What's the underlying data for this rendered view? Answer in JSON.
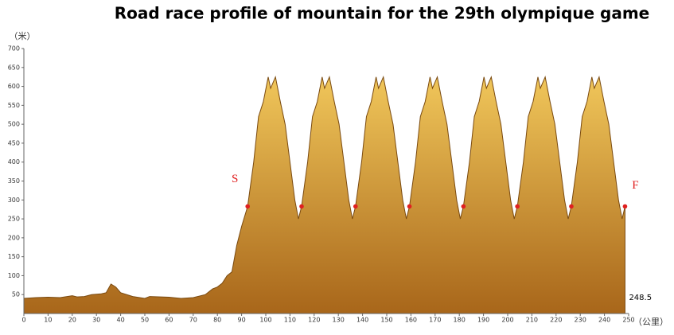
{
  "chart_data": {
    "type": "area",
    "title": "Road race profile of mountain for the 29th olympique game",
    "y_label": "（米）",
    "x_label": "（公里）",
    "end_label": "248.5",
    "start_marker": "S",
    "finish_marker": "F",
    "xlim": [
      0,
      250
    ],
    "ylim": [
      0,
      700
    ],
    "xticks": [
      0,
      10,
      20,
      30,
      40,
      50,
      60,
      70,
      80,
      90,
      100,
      110,
      120,
      130,
      140,
      150,
      160,
      170,
      180,
      190,
      200,
      210,
      220,
      230,
      240,
      250
    ],
    "yticks": [
      50,
      100,
      150,
      200,
      250,
      300,
      350,
      400,
      450,
      500,
      550,
      600,
      650,
      700
    ],
    "color": "#d9a030",
    "marker_color": "#e02020",
    "x": [
      0,
      5,
      10,
      15,
      20,
      22,
      25,
      28,
      32,
      34,
      36,
      38,
      40,
      45,
      50,
      52,
      60,
      65,
      70,
      75,
      78,
      80,
      82,
      84,
      86,
      88,
      90,
      92.5,
      95,
      97,
      99,
      101,
      102,
      103,
      104,
      106,
      108,
      110,
      112,
      113.5,
      114.8,
      117.3,
      119.3,
      121.3,
      123.3,
      124.3,
      125.3,
      126.3,
      128.3,
      130.3,
      132.3,
      134.3,
      135.8,
      137.1,
      139.6,
      141.6,
      143.6,
      145.6,
      146.6,
      147.6,
      148.6,
      150.6,
      152.6,
      154.6,
      156.6,
      158.1,
      159.4,
      161.9,
      163.9,
      165.9,
      167.9,
      168.9,
      169.9,
      170.9,
      172.9,
      174.9,
      176.9,
      178.9,
      180.4,
      181.7,
      184.2,
      186.2,
      188.2,
      190.2,
      191.2,
      192.2,
      193.2,
      195.2,
      197.2,
      199.2,
      201.2,
      202.7,
      204,
      206.5,
      208.5,
      210.5,
      212.5,
      213.5,
      214.5,
      215.5,
      217.5,
      219.5,
      221.5,
      223.5,
      225,
      226.3,
      228.8,
      230.8,
      232.8,
      234.8,
      235.8,
      236.8,
      237.8,
      239.8,
      241.8,
      243.8,
      245.8,
      247.3,
      248.5
    ],
    "values": [
      40,
      42,
      43,
      42,
      47,
      44,
      45,
      50,
      52,
      55,
      78,
      70,
      55,
      45,
      40,
      45,
      43,
      40,
      42,
      50,
      65,
      70,
      80,
      100,
      110,
      180,
      230,
      283,
      400,
      520,
      560,
      625,
      595,
      610,
      625,
      560,
      500,
      400,
      300,
      250,
      283,
      400,
      520,
      560,
      625,
      595,
      610,
      625,
      560,
      500,
      400,
      300,
      250,
      283,
      400,
      520,
      560,
      625,
      595,
      610,
      625,
      560,
      500,
      400,
      300,
      250,
      283,
      400,
      520,
      560,
      625,
      595,
      610,
      625,
      560,
      500,
      400,
      300,
      250,
      283,
      400,
      520,
      560,
      625,
      595,
      610,
      625,
      560,
      500,
      400,
      300,
      250,
      283,
      400,
      520,
      560,
      625,
      595,
      610,
      625,
      560,
      500,
      400,
      300,
      250,
      283,
      400,
      520,
      560,
      625,
      595,
      610,
      625,
      560,
      500,
      400,
      300,
      250,
      283
    ],
    "markers": {
      "x": [
        92.5,
        114.8,
        137.1,
        159.4,
        181.7,
        204,
        226.3,
        248.5
      ],
      "values": [
        283,
        283,
        283,
        283,
        283,
        283,
        283,
        283
      ]
    }
  }
}
